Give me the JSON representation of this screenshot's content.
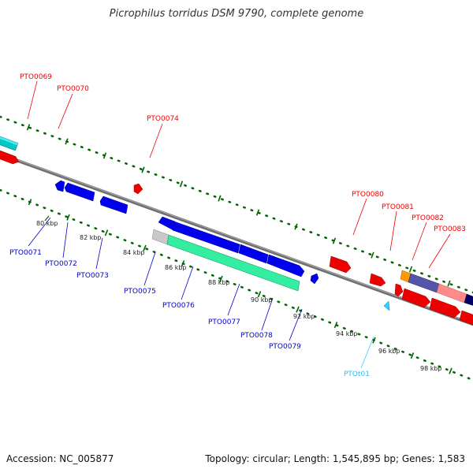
{
  "title": "Picrophilus torridus DSM 9790, complete genome",
  "accession": "Accession: NC_005877",
  "topology": "Topology: circular; Length: 1,545,895 bp; Genes: 1,583",
  "colors": {
    "backbone": "#808080",
    "forward_cds": "#ff0000",
    "reverse_cds": "#0000ff",
    "trna": "#33ccff",
    "ticks": "#006400",
    "cyan_feature": "#00cccc",
    "green_feature": "#33ffaa",
    "orange_feature": "#ff9900",
    "purple_feature": "#5555aa",
    "pink_feature": "#ff8080"
  },
  "upper_labels": [
    {
      "id": "upper-label-pto0069",
      "text": "PTO0069"
    },
    {
      "id": "upper-label-pto0070",
      "text": "PTO0070"
    },
    {
      "id": "upper-label-pto0074",
      "text": "PTO0074"
    },
    {
      "id": "upper-label-pto0080",
      "text": "PTO0080"
    },
    {
      "id": "upper-label-pto0081",
      "text": "PTO0081"
    },
    {
      "id": "upper-label-pto0082",
      "text": "PTO0082"
    },
    {
      "id": "upper-label-pto0083",
      "text": "PTO0083"
    }
  ],
  "lower_labels": [
    {
      "id": "lower-label-pto0071",
      "text": "PTO0071"
    },
    {
      "id": "lower-label-pto0072",
      "text": "PTO0072"
    },
    {
      "id": "lower-label-pto0073",
      "text": "PTO0073"
    },
    {
      "id": "lower-label-pto0075",
      "text": "PTO0075"
    },
    {
      "id": "lower-label-pto0076",
      "text": "PTO0076"
    },
    {
      "id": "lower-label-pto0077",
      "text": "PTO0077"
    },
    {
      "id": "lower-label-pto0078",
      "text": "PTO0078"
    },
    {
      "id": "lower-label-pto0079",
      "text": "PTO0079"
    },
    {
      "id": "lower-label-ptot01",
      "text": "PTOt01"
    }
  ],
  "kbp_labels": [
    "80 kbp",
    "82 kbp",
    "84 kbp",
    "86 kbp",
    "88 kbp",
    "90 kbp",
    "92 kbp",
    "94 kbp",
    "96 kbp",
    "98 kbp"
  ]
}
